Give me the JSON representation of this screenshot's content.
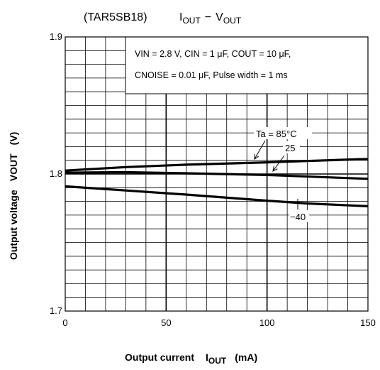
{
  "chart_data": {
    "type": "line",
    "title_part": "TAR5SB18",
    "title_main": "I",
    "title_main_sub": "OUT",
    "title_sep": "−",
    "title_main2": "V",
    "title_main2_sub": "OUT",
    "xlabel": "Output current",
    "xlabel_sym": "I",
    "xlabel_sym_sub": "OUT",
    "xlabel_unit": "(mA)",
    "ylabel": "Output voltage",
    "ylabel_sym": "VOUT",
    "ylabel_unit": "(V)",
    "xlim": [
      0,
      150
    ],
    "ylim": [
      1.7,
      1.9
    ],
    "x_ticks": [
      0,
      50,
      100,
      150
    ],
    "x_tick_labels": [
      "0",
      "50",
      "100",
      "150"
    ],
    "y_ticks": [
      1.7,
      1.8,
      1.9
    ],
    "y_tick_labels": [
      "1.7",
      "1.8",
      "1.9"
    ],
    "x_minor_step": 10,
    "y_minor_step": 0.01,
    "grid": true,
    "conditions": [
      "VIN = 2.8 V, CIN = 1 μF, COUT = 10 μF,",
      "CNOISE = 0.01 μF, Pulse width = 1 ms"
    ],
    "series": [
      {
        "name": "Ta = 85°C",
        "x": [
          0,
          30,
          60,
          100,
          150
        ],
        "y": [
          1.8025,
          1.805,
          1.8068,
          1.8085,
          1.811
        ]
      },
      {
        "name": "25",
        "x": [
          0,
          30,
          60,
          100,
          150
        ],
        "y": [
          1.801,
          1.8013,
          1.8005,
          1.7993,
          1.7965
        ]
      },
      {
        "name": "−40",
        "x": [
          0,
          30,
          60,
          100,
          120,
          150
        ],
        "y": [
          1.791,
          1.788,
          1.785,
          1.7805,
          1.7785,
          1.7765
        ]
      }
    ]
  }
}
